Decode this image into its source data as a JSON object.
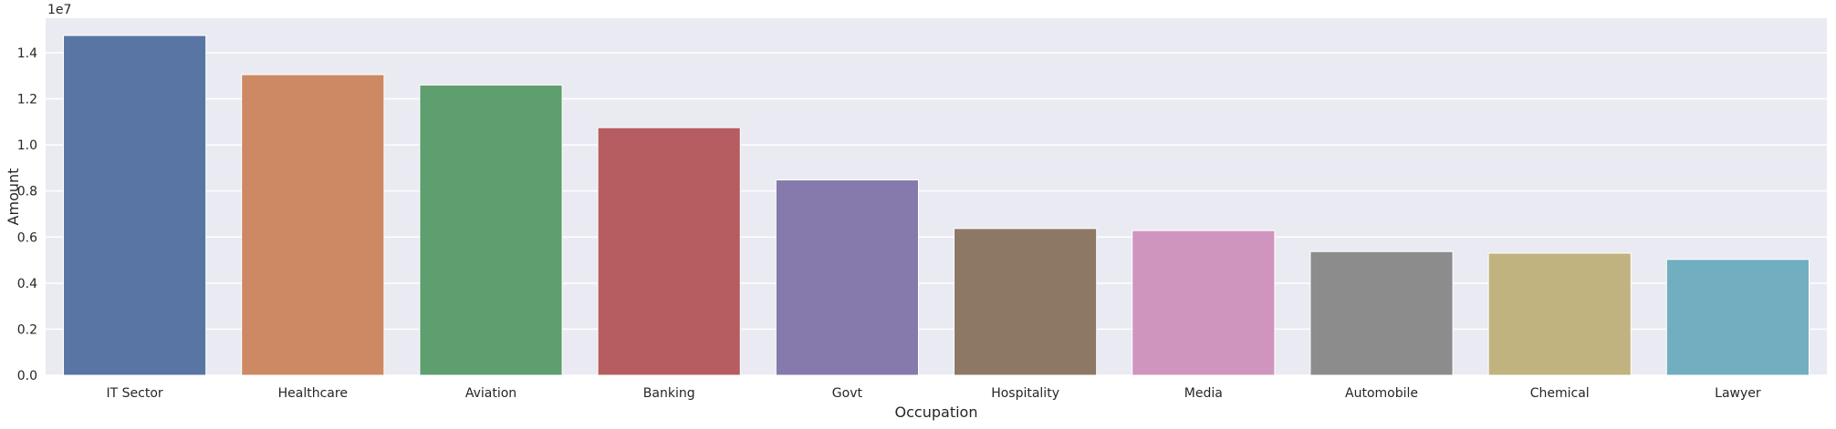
{
  "chart_data": {
    "type": "bar",
    "title": "",
    "xlabel": "Occupation",
    "ylabel": "Amount",
    "offset_label": "1e7",
    "categories": [
      "IT Sector",
      "Healthcare",
      "Aviation",
      "Banking",
      "Govt",
      "Hospitality",
      "Media",
      "Automobile",
      "Chemical",
      "Lawyer"
    ],
    "values": [
      14750000,
      13050000,
      12600000,
      10750000,
      8480000,
      6370000,
      6280000,
      5370000,
      5300000,
      5030000
    ],
    "ylim": [
      0,
      15500000
    ],
    "yticks": [
      0,
      2000000,
      4000000,
      6000000,
      8000000,
      10000000,
      12000000,
      14000000
    ],
    "ytick_labels": [
      "0.0",
      "0.2",
      "0.4",
      "0.6",
      "0.8",
      "1.0",
      "1.2",
      "1.4"
    ],
    "grid": true,
    "colors": [
      "#5975a4",
      "#cc8963",
      "#5f9e6e",
      "#b55d60",
      "#857aab",
      "#8d7866",
      "#d095bf",
      "#8c8c8c",
      "#c1b37f",
      "#71aec0"
    ],
    "background": "#eaeaf2"
  }
}
